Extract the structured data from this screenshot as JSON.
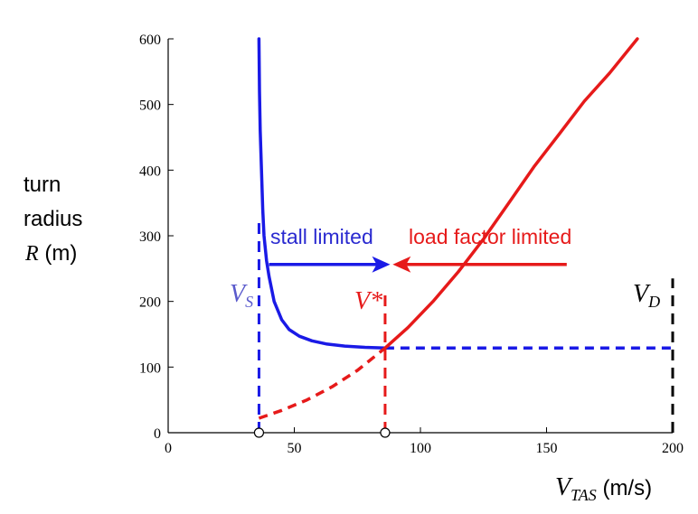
{
  "chart_data": {
    "type": "line",
    "xlim": [
      0,
      200
    ],
    "ylim": [
      0,
      600
    ],
    "xticks": [
      0,
      50,
      100,
      150,
      200
    ],
    "yticks": [
      0,
      100,
      200,
      300,
      400,
      500,
      600
    ],
    "ylabel_lines": [
      "turn",
      "radius"
    ],
    "ylabel_var": "R",
    "ylabel_unit": " (m)",
    "xlabel_var": "V",
    "xlabel_sub": "TAS",
    "xlabel_unit": " (m/s)",
    "series": [
      {
        "key": "stall_solid",
        "color": "#1a1ae6",
        "dashed": false,
        "points": [
          [
            36,
            600
          ],
          [
            36.2,
            520
          ],
          [
            36.5,
            460
          ],
          [
            37,
            400
          ],
          [
            37.5,
            340
          ],
          [
            38,
            300
          ],
          [
            39,
            262
          ],
          [
            40,
            238
          ],
          [
            42,
            200
          ],
          [
            45,
            172
          ],
          [
            48,
            157
          ],
          [
            52,
            147
          ],
          [
            57,
            140
          ],
          [
            63,
            135
          ],
          [
            70,
            132
          ],
          [
            78,
            130
          ],
          [
            86,
            129
          ]
        ]
      },
      {
        "key": "stall_dashed",
        "color": "#1a1ae6",
        "dashed": true,
        "points": [
          [
            86,
            129
          ],
          [
            200,
            129
          ]
        ]
      },
      {
        "key": "load_dashed",
        "color": "#e61a1a",
        "dashed": true,
        "points": [
          [
            36,
            22
          ],
          [
            45,
            34
          ],
          [
            55,
            50
          ],
          [
            65,
            70
          ],
          [
            75,
            95
          ],
          [
            86,
            129
          ]
        ]
      },
      {
        "key": "load_solid",
        "color": "#e61a1a",
        "dashed": false,
        "points": [
          [
            86,
            129
          ],
          [
            95,
            160
          ],
          [
            105,
            200
          ],
          [
            115,
            245
          ],
          [
            125,
            295
          ],
          [
            135,
            350
          ],
          [
            145,
            405
          ],
          [
            155,
            455
          ],
          [
            165,
            505
          ],
          [
            175,
            548
          ],
          [
            186,
            600
          ]
        ]
      }
    ],
    "vlines": [
      {
        "key": "vs",
        "x": 36,
        "y_top": 330,
        "color": "#1a1ae6"
      },
      {
        "key": "vstar",
        "x": 86,
        "y_top": 210,
        "color": "#e61a1a"
      },
      {
        "key": "vd",
        "x": 200,
        "y_top": 235,
        "color": "#000000"
      }
    ],
    "markers": [
      36,
      86
    ],
    "labels": {
      "vs_main": "V",
      "vs_sub": "S",
      "vstar": "V*",
      "vd_main": "V",
      "vd_sub": "D",
      "stall": "stall limited",
      "load": "load factor limited"
    },
    "colors": {
      "stall": "#1a1ae6",
      "load": "#e61a1a",
      "axis": "#000000"
    },
    "arrows": [
      {
        "key": "stall-arrow",
        "color": "#1a1ae6",
        "from_x": 40,
        "to_x": 88,
        "y": 270
      },
      {
        "key": "load-arrow",
        "color": "#e61a1a",
        "from_x": 158,
        "to_x": 89,
        "y": 270
      }
    ]
  }
}
